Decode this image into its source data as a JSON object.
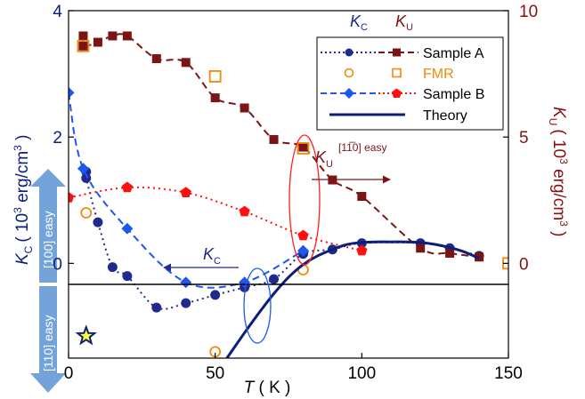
{
  "colors": {
    "axis": "#000000",
    "sampleA_KC": "#1f2a8a",
    "sampleA_KU": "#7b1414",
    "fmr": "#f08a0a",
    "sampleB_KC": "#1e56f0",
    "sampleB_KU": "#ff1010",
    "theory": "#0b1f7a",
    "left_axis_text": "#0b1f7a",
    "right_axis_text": "#8a1010",
    "easy_arrow": "#6d9ed8",
    "ellipse_red": "#ff2020",
    "ellipse_blue": "#1e56f0",
    "star_fill": "#ffff33",
    "star_stroke": "#0b1f7a"
  },
  "legend": {
    "header_kc": "K",
    "header_kc_sub": "C",
    "header_ku": "K",
    "header_ku_sub": "U",
    "sample_a": "Sample A",
    "fmr": "FMR",
    "sample_b": "Sample B",
    "theory": "Theory"
  },
  "annotations": {
    "ku_symbol": "K",
    "ku_sub": "U",
    "ku_super": "[1̅1̅̄0] easy",
    "ku_super_text": "[11̅0] easy",
    "kc_symbol": "K",
    "kc_sub": "C",
    "easy_up": "[100] easy",
    "easy_down": "[110] easy"
  },
  "chart_data": {
    "type": "scatter",
    "xlabel": "T ( K )",
    "xlabel_symbol": "T",
    "xlabel_unit": " ( K )",
    "ylabel_left": "K",
    "ylabel_left_sub": "C",
    "ylabel_left_unit": "( 10",
    "ylabel_left_exp": "3",
    "ylabel_left_unit2": " erg/cm",
    "ylabel_left_exp2": "3",
    "ylabel_left_close": " )",
    "ylabel_right": "K",
    "ylabel_right_sub": "U",
    "ylabel_right_unit": "( 10",
    "ylabel_right_exp": "3",
    "ylabel_right_unit2": " erg/cm",
    "ylabel_right_exp2": "3",
    "ylabel_right_close": " )",
    "xlim": [
      0,
      150
    ],
    "ylim_left": [
      -1.5,
      4
    ],
    "ylim_right": [
      -3.75,
      10
    ],
    "xticks": [
      "0",
      "50",
      "100",
      "150"
    ],
    "yticks_left": [
      "0",
      "2",
      "4"
    ],
    "yticks_right": [
      "0",
      "5",
      "10"
    ],
    "series": [
      {
        "name": "Sample A",
        "quantity": "KC",
        "axis": "left",
        "marker": "circle",
        "line": "dotted",
        "x": [
          6,
          6,
          10,
          15,
          20,
          30,
          40,
          50,
          60,
          70,
          80,
          90,
          100,
          120,
          130,
          140
        ],
        "y": [
          1.45,
          1.35,
          0.65,
          -0.06,
          -0.2,
          -0.7,
          -0.63,
          -0.5,
          -0.38,
          -0.25,
          0.15,
          0.22,
          0.32,
          0.32,
          0.24,
          0.12
        ]
      },
      {
        "name": "Sample A",
        "quantity": "KU",
        "axis": "right",
        "marker": "square",
        "line": "dashed",
        "x": [
          5,
          5,
          10,
          15,
          20,
          30,
          40,
          50,
          60,
          70,
          80,
          90,
          100,
          120,
          130,
          140
        ],
        "y": [
          9.0,
          8.6,
          8.75,
          9.0,
          9.0,
          8.1,
          7.95,
          6.55,
          6.15,
          4.9,
          4.6,
          3.3,
          2.65,
          0.6,
          0.4,
          0.25
        ]
      },
      {
        "name": "FMR",
        "quantity": "KC",
        "axis": "left",
        "marker": "open-circle",
        "x": [
          6,
          50,
          80
        ],
        "y": [
          0.8,
          -1.4,
          -0.1
        ]
      },
      {
        "name": "FMR",
        "quantity": "KU",
        "axis": "right",
        "marker": "open-square",
        "x": [
          5,
          50,
          80,
          150
        ],
        "y": [
          8.6,
          7.4,
          4.55,
          0.0
        ]
      },
      {
        "name": "Sample B",
        "quantity": "KC",
        "axis": "left",
        "marker": "diamond",
        "line": "dashed",
        "x": [
          0,
          5,
          20,
          40,
          60,
          80
        ],
        "y": [
          2.7,
          1.5,
          0.55,
          -0.3,
          -0.3,
          0.2
        ]
      },
      {
        "name": "Sample B",
        "quantity": "KU",
        "axis": "right",
        "marker": "pentagon",
        "line": "dotted",
        "x": [
          0,
          20,
          40,
          60,
          80,
          100
        ],
        "y": [
          2.6,
          3.0,
          2.8,
          2.05,
          1.1,
          0.5
        ]
      },
      {
        "name": "Theory",
        "quantity": "KC",
        "axis": "left",
        "line": "solid",
        "x": [
          54,
          60,
          65,
          70,
          75,
          80,
          85,
          90,
          95,
          100,
          105,
          110,
          115,
          120,
          125,
          130,
          135,
          140
        ],
        "y": [
          -1.5,
          -1.1,
          -0.78,
          -0.48,
          -0.22,
          -0.02,
          0.12,
          0.22,
          0.3,
          0.33,
          0.34,
          0.34,
          0.34,
          0.33,
          0.3,
          0.25,
          0.18,
          0.08
        ]
      }
    ],
    "extra_markers": [
      {
        "name": "star",
        "axis": "left",
        "x": 6,
        "y": -1.15
      }
    ],
    "grid": false
  }
}
